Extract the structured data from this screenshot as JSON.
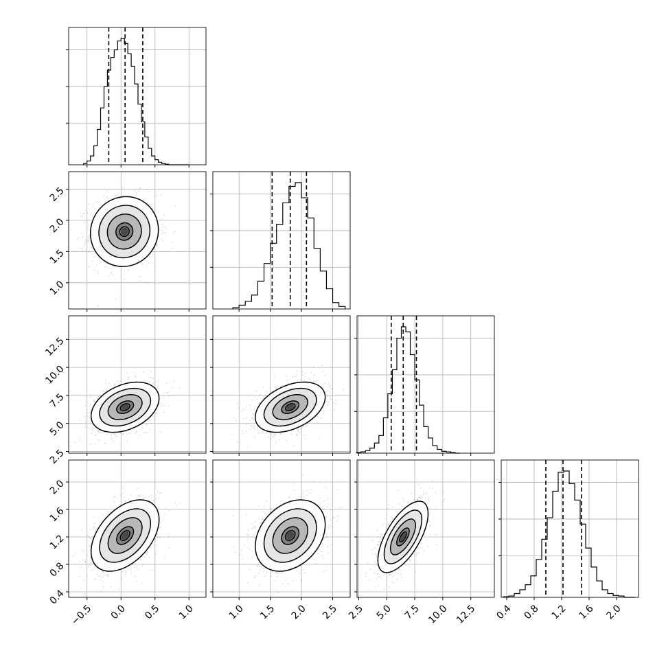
{
  "colors": {
    "background": "#ffffff",
    "line": "#000000",
    "grid": "#b0b0b0",
    "scatter": "#808080",
    "contour_fill_levels": [
      "#ffffff",
      "#e6e6e6",
      "#b8b8b8",
      "#808080",
      "#4a4a4a"
    ]
  },
  "chart_data": {
    "type": "corner",
    "grid": true,
    "parameters": [
      {
        "index": 0,
        "range": [
          -0.77,
          1.25
        ],
        "ticks": [
          -0.5,
          0.0,
          0.5,
          1.0
        ],
        "tick_labels": [
          "−0.5",
          "0.0",
          "0.5",
          "1.0"
        ],
        "median": 0.06,
        "quantile_16": -0.18,
        "quantile_84": 0.32,
        "histogram": {
          "bin_edges": [
            -0.55,
            -0.5,
            -0.45,
            -0.4,
            -0.35,
            -0.3,
            -0.25,
            -0.2,
            -0.15,
            -0.1,
            -0.05,
            0.0,
            0.05,
            0.1,
            0.15,
            0.2,
            0.25,
            0.3,
            0.35,
            0.4,
            0.45,
            0.5,
            0.55,
            0.6,
            0.65,
            0.7,
            0.75,
            0.8,
            0.85,
            0.9,
            0.95,
            1.0
          ],
          "counts": [
            0.01,
            0.03,
            0.07,
            0.15,
            0.28,
            0.45,
            0.62,
            0.75,
            0.85,
            0.91,
            0.98,
            1.0,
            0.96,
            0.88,
            0.78,
            0.64,
            0.48,
            0.34,
            0.22,
            0.13,
            0.07,
            0.04,
            0.02,
            0.01,
            0.005,
            0,
            0,
            0,
            0,
            0,
            0
          ]
        }
      },
      {
        "index": 1,
        "range": [
          0.58,
          2.78
        ],
        "ticks": [
          1.0,
          1.5,
          2.0,
          2.5
        ],
        "tick_labels": [
          "1.0",
          "1.5",
          "2.0",
          "2.5"
        ],
        "median": 1.82,
        "quantile_16": 1.53,
        "quantile_84": 2.08,
        "histogram": {
          "bin_edges": [
            0.9,
            1.0,
            1.1,
            1.2,
            1.3,
            1.4,
            1.5,
            1.6,
            1.7,
            1.8,
            1.9,
            2.0,
            2.1,
            2.2,
            2.3,
            2.4,
            2.5,
            2.6,
            2.7
          ],
          "counts": [
            0.01,
            0.03,
            0.06,
            0.11,
            0.22,
            0.36,
            0.52,
            0.67,
            0.84,
            0.97,
            1.0,
            0.88,
            0.72,
            0.48,
            0.3,
            0.16,
            0.05,
            0.02
          ]
        }
      },
      {
        "index": 2,
        "range": [
          2.35,
          14.6
        ],
        "ticks": [
          2.5,
          5.0,
          7.5,
          10.0,
          12.5
        ],
        "tick_labels": [
          "2.5",
          "5.0",
          "7.5",
          "10.0",
          "12.5"
        ],
        "median": 6.47,
        "quantile_16": 5.4,
        "quantile_84": 7.65,
        "histogram": {
          "bin_edges": [
            2.3,
            2.7,
            3.1,
            3.5,
            3.9,
            4.3,
            4.7,
            5.1,
            5.5,
            5.9,
            6.3,
            6.7,
            7.1,
            7.5,
            7.9,
            8.3,
            8.7,
            9.1,
            9.5,
            9.9,
            10.3,
            10.7,
            11.1,
            11.5
          ],
          "counts": [
            0.005,
            0.01,
            0.02,
            0.04,
            0.08,
            0.14,
            0.28,
            0.47,
            0.66,
            0.91,
            1.0,
            0.96,
            0.78,
            0.58,
            0.38,
            0.21,
            0.12,
            0.06,
            0.03,
            0.015,
            0.01,
            0.005,
            0
          ]
        }
      },
      {
        "index": 3,
        "range": [
          0.32,
          2.32
        ],
        "ticks": [
          0.4,
          0.8,
          1.2,
          1.6,
          2.0
        ],
        "tick_labels": [
          "0.4",
          "0.8",
          "1.2",
          "1.6",
          "2.0"
        ],
        "median": 1.22,
        "quantile_16": 0.97,
        "quantile_84": 1.49,
        "histogram": {
          "bin_edges": [
            0.35,
            0.43,
            0.51,
            0.59,
            0.67,
            0.75,
            0.83,
            0.91,
            0.99,
            1.07,
            1.15,
            1.23,
            1.31,
            1.39,
            1.47,
            1.55,
            1.63,
            1.71,
            1.79,
            1.87,
            1.95,
            2.03,
            2.11,
            2.19,
            2.27
          ],
          "counts": [
            0.005,
            0.01,
            0.03,
            0.06,
            0.1,
            0.17,
            0.3,
            0.46,
            0.63,
            0.84,
            0.99,
            1.0,
            0.9,
            0.77,
            0.58,
            0.39,
            0.24,
            0.13,
            0.06,
            0.03,
            0.015,
            0.01,
            0,
            0
          ]
        }
      }
    ],
    "pairs": [
      {
        "x": 0,
        "y": 1,
        "mean": [
          0.05,
          1.82
        ],
        "sigma": [
          0.25,
          0.28
        ],
        "rho": 0.05
      },
      {
        "x": 0,
        "y": 2,
        "mean": [
          0.06,
          6.45
        ],
        "sigma": [
          0.25,
          1.12
        ],
        "rho": 0.35
      },
      {
        "x": 1,
        "y": 2,
        "mean": [
          1.82,
          6.45
        ],
        "sigma": [
          0.28,
          1.12
        ],
        "rho": 0.4
      },
      {
        "x": 0,
        "y": 3,
        "mean": [
          0.06,
          1.22
        ],
        "sigma": [
          0.25,
          0.26
        ],
        "rho": 0.45
      },
      {
        "x": 1,
        "y": 3,
        "mean": [
          1.82,
          1.22
        ],
        "sigma": [
          0.28,
          0.26
        ],
        "rho": 0.3
      },
      {
        "x": 2,
        "y": 3,
        "mean": [
          6.45,
          1.2
        ],
        "sigma": [
          1.12,
          0.26
        ],
        "rho": 0.65
      }
    ],
    "contour_levels_sigma": [
      0.5,
      1.0,
      1.5,
      2.0
    ]
  }
}
